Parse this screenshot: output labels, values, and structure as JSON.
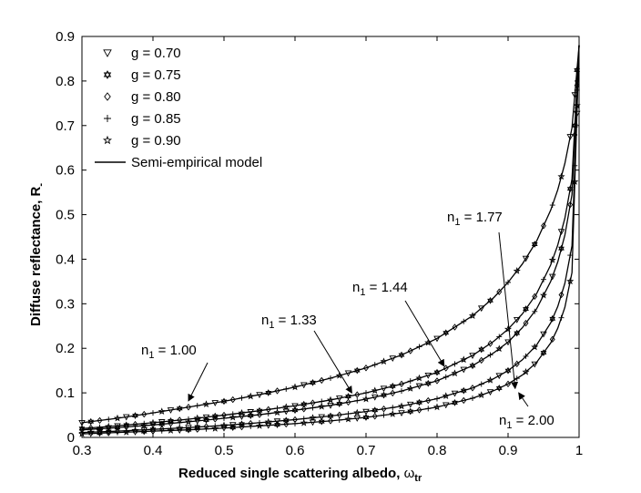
{
  "chart_data": {
    "type": "line",
    "xlabel": "Reduced single scattering albedo, ",
    "xlabel_symbol": "ω",
    "xlabel_sub": "tr",
    "ylabel": "Diffuse reflectance, R",
    "ylabel_sub": "-",
    "xlim": [
      0.3,
      1.0
    ],
    "ylim": [
      0,
      0.9
    ],
    "xticks": [
      "0.3",
      "0.4",
      "0.5",
      "0.6",
      "0.7",
      "0.8",
      "0.9",
      "1"
    ],
    "yticks": [
      "0",
      "0.1",
      "0.2",
      "0.3",
      "0.4",
      "0.5",
      "0.6",
      "0.7",
      "0.8",
      "0.9"
    ],
    "grid": false,
    "legend_position": "top-left",
    "legend": [
      {
        "label": "g = 0.70",
        "marker": "triangle-down"
      },
      {
        "label": "g = 0.75",
        "marker": "hexagram"
      },
      {
        "label": "g = 0.80",
        "marker": "diamond"
      },
      {
        "label": "g = 0.85",
        "marker": "plus"
      },
      {
        "label": "g = 0.90",
        "marker": "star"
      },
      {
        "label": "Semi-empirical model",
        "marker": "line"
      }
    ],
    "series": [
      {
        "n1": 1.0,
        "x": [
          0.3,
          0.35,
          0.4,
          0.45,
          0.5,
          0.55,
          0.6,
          0.65,
          0.7,
          0.75,
          0.8,
          0.85,
          0.88,
          0.9,
          0.92,
          0.94,
          0.96,
          0.97,
          0.98,
          0.99,
          1.0
        ],
        "y": [
          0.033,
          0.043,
          0.055,
          0.068,
          0.081,
          0.096,
          0.113,
          0.133,
          0.156,
          0.185,
          0.222,
          0.273,
          0.314,
          0.348,
          0.389,
          0.44,
          0.51,
          0.556,
          0.615,
          0.695,
          0.88
        ]
      },
      {
        "n1": 1.33,
        "x": [
          0.3,
          0.35,
          0.4,
          0.45,
          0.5,
          0.55,
          0.6,
          0.65,
          0.7,
          0.75,
          0.8,
          0.85,
          0.88,
          0.9,
          0.92,
          0.94,
          0.96,
          0.97,
          0.98,
          0.99,
          1.0
        ],
        "y": [
          0.02,
          0.026,
          0.033,
          0.041,
          0.05,
          0.06,
          0.071,
          0.084,
          0.1,
          0.12,
          0.146,
          0.184,
          0.216,
          0.243,
          0.277,
          0.322,
          0.387,
          0.432,
          0.492,
          0.58,
          0.88
        ]
      },
      {
        "n1": 1.44,
        "x": [
          0.3,
          0.35,
          0.4,
          0.45,
          0.5,
          0.55,
          0.6,
          0.65,
          0.7,
          0.75,
          0.8,
          0.85,
          0.88,
          0.9,
          0.92,
          0.94,
          0.96,
          0.97,
          0.98,
          0.99,
          1.0
        ],
        "y": [
          0.017,
          0.022,
          0.028,
          0.035,
          0.043,
          0.051,
          0.061,
          0.072,
          0.086,
          0.104,
          0.127,
          0.161,
          0.19,
          0.214,
          0.246,
          0.288,
          0.35,
          0.394,
          0.454,
          0.545,
          0.88
        ]
      },
      {
        "n1": 1.77,
        "x": [
          0.3,
          0.35,
          0.4,
          0.45,
          0.5,
          0.55,
          0.6,
          0.65,
          0.7,
          0.75,
          0.8,
          0.85,
          0.88,
          0.9,
          0.92,
          0.94,
          0.96,
          0.97,
          0.98,
          0.99,
          1.0
        ],
        "y": [
          0.011,
          0.014,
          0.018,
          0.022,
          0.027,
          0.033,
          0.04,
          0.048,
          0.058,
          0.07,
          0.087,
          0.111,
          0.132,
          0.15,
          0.174,
          0.207,
          0.257,
          0.294,
          0.346,
          0.43,
          0.88
        ]
      },
      {
        "n1": 2.0,
        "x": [
          0.3,
          0.35,
          0.4,
          0.45,
          0.5,
          0.55,
          0.6,
          0.65,
          0.7,
          0.75,
          0.8,
          0.85,
          0.88,
          0.9,
          0.92,
          0.94,
          0.96,
          0.97,
          0.98,
          0.99,
          1.0
        ],
        "y": [
          0.008,
          0.011,
          0.014,
          0.017,
          0.021,
          0.026,
          0.031,
          0.037,
          0.045,
          0.055,
          0.068,
          0.088,
          0.105,
          0.12,
          0.14,
          0.168,
          0.212,
          0.245,
          0.292,
          0.37,
          0.88
        ]
      }
    ],
    "annotations": [
      {
        "label": "n",
        "sub": "1",
        "value": " = 1.00",
        "target": [
          0.45,
          0.082
        ]
      },
      {
        "label": "n",
        "sub": "1",
        "value": " = 1.33",
        "target": [
          0.68,
          0.1
        ]
      },
      {
        "label": "n",
        "sub": "1",
        "value": " = 1.44",
        "target": [
          0.81,
          0.16
        ]
      },
      {
        "label": "n",
        "sub": "1",
        "value": " = 1.77",
        "target": [
          0.91,
          0.11
        ]
      },
      {
        "label": "n",
        "sub": "1",
        "value": " = 2.00",
        "target": [
          0.915,
          0.1
        ]
      }
    ]
  }
}
